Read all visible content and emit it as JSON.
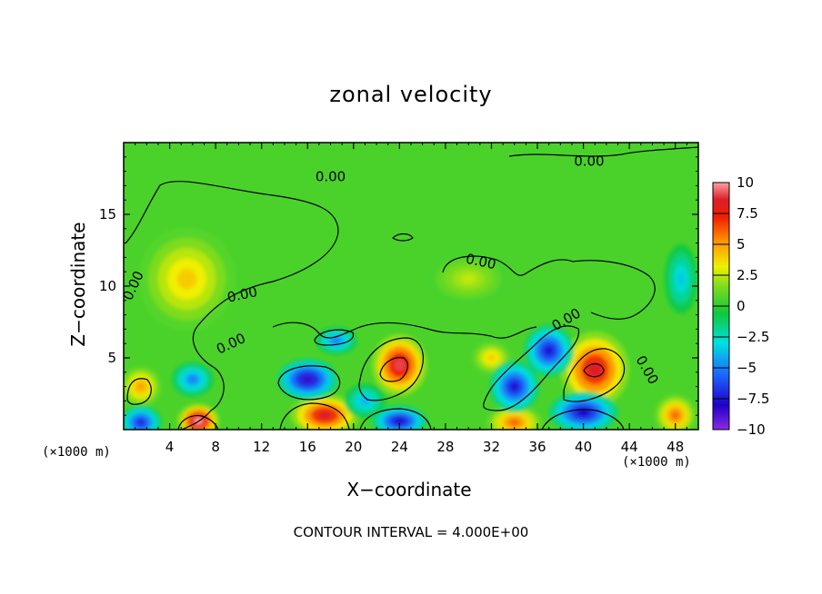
{
  "chart_data": {
    "type": "heatmap",
    "title": "zonal velocity",
    "xlabel": "X−coordinate",
    "ylabel": "Z−coordinate",
    "x_unit_label": "(×1000 m)",
    "z_unit_label": "(×1000 m)",
    "xlim": [
      0,
      50
    ],
    "ylim": [
      0,
      20
    ],
    "x_ticks": [
      4,
      8,
      12,
      16,
      20,
      24,
      28,
      32,
      36,
      40,
      44,
      48
    ],
    "y_ticks": [
      5,
      10,
      15
    ],
    "colorbar": {
      "range": [
        -10,
        10
      ],
      "tick_values": [
        10,
        7.5,
        5,
        2.5,
        0,
        -2.5,
        -5,
        -7.5,
        -10
      ],
      "tick_labels": [
        "10",
        "7.5",
        "5",
        "2.5",
        "0",
        "−2.5",
        "−5",
        "−7.5",
        "−10"
      ]
    },
    "contour_interval_label": "CONTOUR INTERVAL = 4.000E+00",
    "contour_labels": [
      "0.00",
      "0.00",
      "0.00",
      "0.00",
      "0.00",
      "0.00",
      "0.00",
      "0.00"
    ],
    "field_features": [
      {
        "x": 24,
        "z": 4.5,
        "value": 9,
        "sx": 2.0,
        "sz": 1.8
      },
      {
        "x": 41,
        "z": 4.2,
        "value": 8.5,
        "sx": 2.5,
        "sz": 2.2
      },
      {
        "x": 6.5,
        "z": 0.6,
        "value": 10,
        "sx": 1.5,
        "sz": 1.0
      },
      {
        "x": 17.5,
        "z": 1.0,
        "value": 8.5,
        "sx": 2.5,
        "sz": 1.2
      },
      {
        "x": 34,
        "z": 0.5,
        "value": 6,
        "sx": 2.0,
        "sz": 1.0
      },
      {
        "x": 48,
        "z": 1.0,
        "value": 6,
        "sx": 1.5,
        "sz": 1.2
      },
      {
        "x": 1.5,
        "z": 3.0,
        "value": 5,
        "sx": 1.5,
        "sz": 1.2
      },
      {
        "x": 5.5,
        "z": 10.5,
        "value": 4,
        "sx": 3.5,
        "sz": 3.0
      },
      {
        "x": 32,
        "z": 5.0,
        "value": 4,
        "sx": 1.5,
        "sz": 1.0
      },
      {
        "x": 16,
        "z": 3.5,
        "value": -8.5,
        "sx": 2.2,
        "sz": 1.2
      },
      {
        "x": 40,
        "z": 1.2,
        "value": -8,
        "sx": 2.5,
        "sz": 1.2
      },
      {
        "x": 24,
        "z": 0.6,
        "value": -8,
        "sx": 2.0,
        "sz": 0.9
      },
      {
        "x": 1.5,
        "z": 0.5,
        "value": -7,
        "sx": 1.5,
        "sz": 1.0
      },
      {
        "x": 18.5,
        "z": 6.2,
        "value": -5,
        "sx": 1.5,
        "sz": 0.8
      },
      {
        "x": 34,
        "z": 3.0,
        "value": -7.5,
        "sx": 1.8,
        "sz": 1.5
      },
      {
        "x": 37,
        "z": 5.5,
        "value": -7.5,
        "sx": 1.8,
        "sz": 1.5
      },
      {
        "x": 6,
        "z": 3.5,
        "value": -5,
        "sx": 1.5,
        "sz": 1.0
      },
      {
        "x": 21,
        "z": 2.0,
        "value": -4,
        "sx": 1.5,
        "sz": 1.0
      },
      {
        "x": 48.5,
        "z": 10.5,
        "value": -3.5,
        "sx": 1.2,
        "sz": 2.0
      },
      {
        "x": 30,
        "z": 10.5,
        "value": 2.5,
        "sx": 3.0,
        "sz": 1.5
      }
    ]
  }
}
